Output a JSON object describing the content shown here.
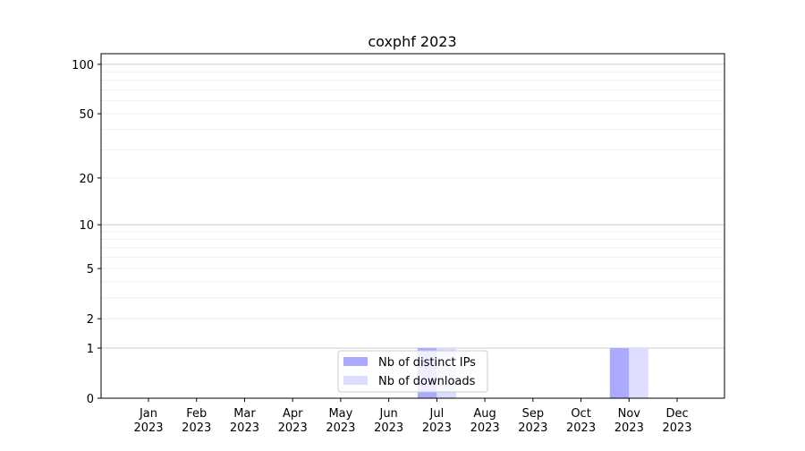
{
  "chart_data": {
    "type": "bar",
    "title": "coxphf 2023",
    "xlabel": "",
    "ylabel": "",
    "yscale": "log(1+y)",
    "ylim": [
      0,
      116
    ],
    "yticks": [
      0,
      1,
      2,
      5,
      10,
      20,
      50,
      100
    ],
    "grid": true,
    "legend_position": "bottom-center",
    "categories": [
      "Jan\n2023",
      "Feb\n2023",
      "Mar\n2023",
      "Apr\n2023",
      "May\n2023",
      "Jun\n2023",
      "Jul\n2023",
      "Aug\n2023",
      "Sep\n2023",
      "Oct\n2023",
      "Nov\n2023",
      "Dec\n2023"
    ],
    "series": [
      {
        "name": "Nb of distinct IPs",
        "color": "#aaaaff",
        "values": [
          0,
          0,
          0,
          0,
          0,
          0,
          1,
          0,
          0,
          0,
          1,
          0
        ]
      },
      {
        "name": "Nb of downloads",
        "color": "#ddddff",
        "values": [
          0,
          0,
          0,
          0,
          0,
          0,
          1,
          0,
          0,
          0,
          1,
          0
        ]
      }
    ]
  }
}
